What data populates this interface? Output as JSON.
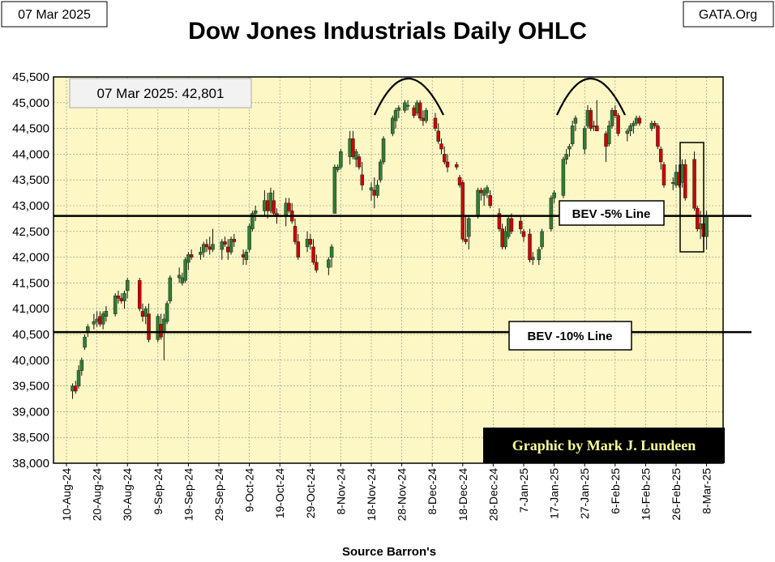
{
  "header": {
    "date_label": "07 Mar 2025",
    "title": "Dow Jones Industrials Daily OHLC",
    "site_label": "GATA.Org"
  },
  "callouts": {
    "last_close": "07 Mar 2025:   42,801",
    "bev5": "BEV -5% Line",
    "bev10": "BEV -10% Line",
    "credit": "Graphic by Mark J. Lundeen",
    "source": "Source Barron's"
  },
  "colors": {
    "plot_bg": "#fcf7c4",
    "up_candle": "#2e7d32",
    "down_candle": "#cc0000",
    "grid": "#888888",
    "credit_bg": "#000000",
    "credit_text": "#ffff99"
  },
  "chart_data": {
    "type": "ohlc",
    "title": "Dow Jones Industrials Daily OHLC",
    "xlabel": "Source Barron's",
    "ylabel": "",
    "ylim": [
      38000,
      45500
    ],
    "ytick_values": [
      38000,
      38500,
      39000,
      39500,
      40000,
      40500,
      41000,
      41500,
      42000,
      42500,
      43000,
      43500,
      44000,
      44500,
      45000,
      45500
    ],
    "ytick_labels": [
      "38,000",
      "38,500",
      "39,000",
      "39,500",
      "40,000",
      "40,500",
      "41,000",
      "41,500",
      "42,000",
      "42,500",
      "43,000",
      "43,500",
      "44,000",
      "44,500",
      "45,000",
      "45,500"
    ],
    "x_day_range": [
      0,
      214
    ],
    "xtick_days": [
      0,
      10,
      20,
      30,
      40,
      50,
      60,
      70,
      80,
      90,
      100,
      110,
      120,
      130,
      140,
      150,
      160,
      170,
      180,
      190,
      200,
      210
    ],
    "xtick_labels": [
      "10-Aug-24",
      "20-Aug-24",
      "30-Aug-24",
      "9-Sep-24",
      "19-Sep-24",
      "29-Sep-24",
      "9-Oct-24",
      "19-Oct-24",
      "29-Oct-24",
      "8-Nov-24",
      "18-Nov-24",
      "28-Nov-24",
      "8-Dec-24",
      "18-Dec-24",
      "28-Dec-24",
      "7-Jan-25",
      "17-Jan-25",
      "27-Jan-25",
      "6-Feb-25",
      "16-Feb-25",
      "26-Feb-25",
      "8-Mar-25"
    ],
    "reference_lines": [
      {
        "name": "BEV -5% Line",
        "value": 42801
      },
      {
        "name": "BEV -10% Line",
        "value": 40546
      }
    ],
    "last_date": "07 Mar 2025",
    "last_close": 42801,
    "series": [
      {
        "d": 2,
        "o": 39400,
        "h": 39550,
        "l": 39250,
        "c": 39500
      },
      {
        "d": 3,
        "o": 39500,
        "h": 39600,
        "l": 39350,
        "c": 39400
      },
      {
        "d": 4,
        "o": 39500,
        "h": 39900,
        "l": 39450,
        "c": 39800
      },
      {
        "d": 5,
        "o": 39800,
        "h": 40050,
        "l": 39700,
        "c": 40000
      },
      {
        "d": 6,
        "o": 40250,
        "h": 40500,
        "l": 40200,
        "c": 40450
      },
      {
        "d": 7,
        "o": 40550,
        "h": 40700,
        "l": 40450,
        "c": 40650
      },
      {
        "d": 9,
        "o": 40700,
        "h": 40900,
        "l": 40600,
        "c": 40750
      },
      {
        "d": 10,
        "o": 40750,
        "h": 40950,
        "l": 40650,
        "c": 40800
      },
      {
        "d": 11,
        "o": 40850,
        "h": 40950,
        "l": 40650,
        "c": 40700
      },
      {
        "d": 12,
        "o": 40700,
        "h": 40950,
        "l": 40600,
        "c": 40900
      },
      {
        "d": 13,
        "o": 40850,
        "h": 41050,
        "l": 40750,
        "c": 40950
      },
      {
        "d": 16,
        "o": 40900,
        "h": 41300,
        "l": 40850,
        "c": 41250
      },
      {
        "d": 17,
        "o": 41250,
        "h": 41350,
        "l": 41100,
        "c": 41200
      },
      {
        "d": 18,
        "o": 41200,
        "h": 41300,
        "l": 41100,
        "c": 41150
      },
      {
        "d": 19,
        "o": 41150,
        "h": 41350,
        "l": 41000,
        "c": 41300
      },
      {
        "d": 20,
        "o": 41350,
        "h": 41600,
        "l": 41200,
        "c": 41550
      },
      {
        "d": 24,
        "o": 41550,
        "h": 41600,
        "l": 40950,
        "c": 41000
      },
      {
        "d": 25,
        "o": 40950,
        "h": 41100,
        "l": 40750,
        "c": 40850
      },
      {
        "d": 26,
        "o": 40850,
        "h": 41050,
        "l": 40700,
        "c": 41000
      },
      {
        "d": 27,
        "o": 40900,
        "h": 41100,
        "l": 40350,
        "c": 40400
      },
      {
        "d": 30,
        "o": 40400,
        "h": 40900,
        "l": 40350,
        "c": 40850
      },
      {
        "d": 31,
        "o": 40700,
        "h": 40900,
        "l": 40400,
        "c": 40450
      },
      {
        "d": 32,
        "o": 40550,
        "h": 40900,
        "l": 40000,
        "c": 40800
      },
      {
        "d": 33,
        "o": 40750,
        "h": 41150,
        "l": 40700,
        "c": 41100
      },
      {
        "d": 34,
        "o": 41150,
        "h": 41650,
        "l": 41100,
        "c": 41600
      },
      {
        "d": 37,
        "o": 41600,
        "h": 41800,
        "l": 41500,
        "c": 41650
      },
      {
        "d": 38,
        "o": 41500,
        "h": 41700,
        "l": 41450,
        "c": 41600
      },
      {
        "d": 39,
        "o": 41550,
        "h": 42000,
        "l": 41500,
        "c": 41950
      },
      {
        "d": 40,
        "o": 41900,
        "h": 42100,
        "l": 41750,
        "c": 42050
      },
      {
        "d": 41,
        "o": 42050,
        "h": 42150,
        "l": 41950,
        "c": 42000
      },
      {
        "d": 44,
        "o": 42050,
        "h": 42200,
        "l": 41950,
        "c": 42100
      },
      {
        "d": 45,
        "o": 42100,
        "h": 42300,
        "l": 42000,
        "c": 42250
      },
      {
        "d": 46,
        "o": 42250,
        "h": 42350,
        "l": 42100,
        "c": 42200
      },
      {
        "d": 47,
        "o": 42200,
        "h": 42400,
        "l": 42050,
        "c": 42150
      },
      {
        "d": 48,
        "o": 42150,
        "h": 42550,
        "l": 42100,
        "c": 42250
      },
      {
        "d": 51,
        "o": 42150,
        "h": 42350,
        "l": 41950,
        "c": 42300
      },
      {
        "d": 52,
        "o": 42300,
        "h": 42400,
        "l": 42200,
        "c": 42250
      },
      {
        "d": 53,
        "o": 42200,
        "h": 42350,
        "l": 41950,
        "c": 42100
      },
      {
        "d": 54,
        "o": 42100,
        "h": 42400,
        "l": 42050,
        "c": 42350
      },
      {
        "d": 55,
        "o": 42350,
        "h": 42450,
        "l": 42200,
        "c": 42300
      },
      {
        "d": 58,
        "o": 42050,
        "h": 42150,
        "l": 41850,
        "c": 42000
      },
      {
        "d": 59,
        "o": 41950,
        "h": 42150,
        "l": 41850,
        "c": 42100
      },
      {
        "d": 60,
        "o": 42150,
        "h": 42650,
        "l": 42100,
        "c": 42600
      },
      {
        "d": 61,
        "o": 42550,
        "h": 42900,
        "l": 42500,
        "c": 42850
      },
      {
        "d": 62,
        "o": 42850,
        "h": 43000,
        "l": 42700,
        "c": 42900
      },
      {
        "d": 65,
        "o": 42900,
        "h": 43300,
        "l": 42800,
        "c": 43100
      },
      {
        "d": 66,
        "o": 43100,
        "h": 43250,
        "l": 42750,
        "c": 42900
      },
      {
        "d": 67,
        "o": 42900,
        "h": 43350,
        "l": 42850,
        "c": 43250
      },
      {
        "d": 68,
        "o": 43100,
        "h": 43300,
        "l": 42800,
        "c": 42850
      },
      {
        "d": 69,
        "o": 42850,
        "h": 42950,
        "l": 42650,
        "c": 42800
      },
      {
        "d": 72,
        "o": 42800,
        "h": 43150,
        "l": 42600,
        "c": 43050
      },
      {
        "d": 73,
        "o": 43050,
        "h": 43150,
        "l": 42850,
        "c": 42900
      },
      {
        "d": 74,
        "o": 42900,
        "h": 43050,
        "l": 42650,
        "c": 42700
      },
      {
        "d": 75,
        "o": 42600,
        "h": 42750,
        "l": 42250,
        "c": 42300
      },
      {
        "d": 76,
        "o": 42300,
        "h": 42450,
        "l": 41950,
        "c": 42000
      },
      {
        "d": 79,
        "o": 42200,
        "h": 42500,
        "l": 42100,
        "c": 42350
      },
      {
        "d": 80,
        "o": 42350,
        "h": 42450,
        "l": 42150,
        "c": 42250
      },
      {
        "d": 81,
        "o": 42200,
        "h": 42350,
        "l": 41850,
        "c": 41900
      },
      {
        "d": 82,
        "o": 41900,
        "h": 42050,
        "l": 41700,
        "c": 41750
      },
      {
        "d": 86,
        "o": 41800,
        "h": 42000,
        "l": 41650,
        "c": 41950
      },
      {
        "d": 87,
        "o": 42000,
        "h": 42250,
        "l": 41800,
        "c": 42200
      },
      {
        "d": 88,
        "o": 42850,
        "h": 43800,
        "l": 42850,
        "c": 43750
      },
      {
        "d": 89,
        "o": 43700,
        "h": 43800,
        "l": 43650,
        "c": 43750
      },
      {
        "d": 90,
        "o": 43750,
        "h": 44100,
        "l": 43700,
        "c": 44050
      },
      {
        "d": 93,
        "o": 43950,
        "h": 44450,
        "l": 43800,
        "c": 44300
      },
      {
        "d": 94,
        "o": 44300,
        "h": 44450,
        "l": 43900,
        "c": 43950
      },
      {
        "d": 95,
        "o": 43900,
        "h": 44100,
        "l": 43750,
        "c": 44050
      },
      {
        "d": 96,
        "o": 43950,
        "h": 44000,
        "l": 43700,
        "c": 43750
      },
      {
        "d": 97,
        "o": 43600,
        "h": 43850,
        "l": 43300,
        "c": 43400
      },
      {
        "d": 100,
        "o": 43300,
        "h": 43450,
        "l": 43100,
        "c": 43350
      },
      {
        "d": 101,
        "o": 43300,
        "h": 43550,
        "l": 42950,
        "c": 43200
      },
      {
        "d": 102,
        "o": 43200,
        "h": 43500,
        "l": 43150,
        "c": 43400
      },
      {
        "d": 103,
        "o": 43500,
        "h": 43900,
        "l": 43450,
        "c": 43850
      },
      {
        "d": 104,
        "o": 43850,
        "h": 44350,
        "l": 43800,
        "c": 44300
      },
      {
        "d": 107,
        "o": 44400,
        "h": 44750,
        "l": 44350,
        "c": 44700
      },
      {
        "d": 108,
        "o": 44650,
        "h": 44900,
        "l": 44500,
        "c": 44850
      },
      {
        "d": 109,
        "o": 44850,
        "h": 44950,
        "l": 44700,
        "c": 44900
      },
      {
        "d": 111,
        "o": 44850,
        "h": 45050,
        "l": 44800,
        "c": 45000
      },
      {
        "d": 112,
        "o": 44950,
        "h": 45050,
        "l": 44850,
        "c": 44950
      },
      {
        "d": 114,
        "o": 44900,
        "h": 44950,
        "l": 44700,
        "c": 44750
      },
      {
        "d": 115,
        "o": 44800,
        "h": 45050,
        "l": 44750,
        "c": 45000
      },
      {
        "d": 116,
        "o": 45000,
        "h": 45050,
        "l": 44650,
        "c": 44700
      },
      {
        "d": 117,
        "o": 44700,
        "h": 44850,
        "l": 44550,
        "c": 44650
      },
      {
        "d": 118,
        "o": 44650,
        "h": 44900,
        "l": 44600,
        "c": 44850
      },
      {
        "d": 121,
        "o": 44700,
        "h": 44800,
        "l": 44450,
        "c": 44500
      },
      {
        "d": 122,
        "o": 44450,
        "h": 44600,
        "l": 44200,
        "c": 44250
      },
      {
        "d": 123,
        "o": 44200,
        "h": 44300,
        "l": 44000,
        "c": 44100
      },
      {
        "d": 124,
        "o": 44000,
        "h": 44150,
        "l": 43800,
        "c": 43850
      },
      {
        "d": 125,
        "o": 43850,
        "h": 44000,
        "l": 43650,
        "c": 43750
      },
      {
        "d": 128,
        "o": 43800,
        "h": 43850,
        "l": 43700,
        "c": 43750
      },
      {
        "d": 129,
        "o": 43550,
        "h": 43600,
        "l": 43350,
        "c": 43400
      },
      {
        "d": 130,
        "o": 43450,
        "h": 43500,
        "l": 42300,
        "c": 42350
      },
      {
        "d": 131,
        "o": 42350,
        "h": 42800,
        "l": 42250,
        "c": 42300
      },
      {
        "d": 132,
        "o": 42400,
        "h": 42800,
        "l": 42150,
        "c": 42750
      },
      {
        "d": 135,
        "o": 42800,
        "h": 43350,
        "l": 42750,
        "c": 43300
      },
      {
        "d": 136,
        "o": 43300,
        "h": 43350,
        "l": 43100,
        "c": 43250
      },
      {
        "d": 137,
        "o": 43200,
        "h": 43350,
        "l": 43000,
        "c": 43300
      },
      {
        "d": 138,
        "o": 43250,
        "h": 43400,
        "l": 43150,
        "c": 43350
      },
      {
        "d": 139,
        "o": 43200,
        "h": 43300,
        "l": 42950,
        "c": 43000
      },
      {
        "d": 142,
        "o": 42850,
        "h": 42950,
        "l": 42500,
        "c": 42550
      },
      {
        "d": 143,
        "o": 42550,
        "h": 42650,
        "l": 42150,
        "c": 42200
      },
      {
        "d": 144,
        "o": 42200,
        "h": 42600,
        "l": 42150,
        "c": 42500
      },
      {
        "d": 145,
        "o": 42400,
        "h": 42800,
        "l": 42350,
        "c": 42750
      },
      {
        "d": 146,
        "o": 42750,
        "h": 42850,
        "l": 42450,
        "c": 42500
      },
      {
        "d": 149,
        "o": 42700,
        "h": 42800,
        "l": 42450,
        "c": 42550
      },
      {
        "d": 150,
        "o": 42500,
        "h": 42550,
        "l": 42300,
        "c": 42400
      },
      {
        "d": 152,
        "o": 42450,
        "h": 42550,
        "l": 41900,
        "c": 41950
      },
      {
        "d": 153,
        "o": 41950,
        "h": 42100,
        "l": 41850,
        "c": 42000
      },
      {
        "d": 155,
        "o": 41950,
        "h": 42200,
        "l": 41850,
        "c": 42150
      },
      {
        "d": 156,
        "o": 42200,
        "h": 42550,
        "l": 42150,
        "c": 42500
      },
      {
        "d": 159,
        "o": 42550,
        "h": 43200,
        "l": 42500,
        "c": 43150
      },
      {
        "d": 160,
        "o": 43150,
        "h": 43300,
        "l": 43050,
        "c": 43250
      },
      {
        "d": 163,
        "o": 43200,
        "h": 43950,
        "l": 43150,
        "c": 43900
      },
      {
        "d": 164,
        "o": 43900,
        "h": 44100,
        "l": 43800,
        "c": 44000
      },
      {
        "d": 165,
        "o": 44100,
        "h": 44200,
        "l": 43950,
        "c": 44150
      },
      {
        "d": 166,
        "o": 44200,
        "h": 44650,
        "l": 44150,
        "c": 44550
      },
      {
        "d": 167,
        "o": 44600,
        "h": 44750,
        "l": 44450,
        "c": 44700
      },
      {
        "d": 170,
        "o": 44100,
        "h": 44550,
        "l": 44000,
        "c": 44500
      },
      {
        "d": 171,
        "o": 44550,
        "h": 44950,
        "l": 44500,
        "c": 44850
      },
      {
        "d": 172,
        "o": 44850,
        "h": 44900,
        "l": 44450,
        "c": 44500
      },
      {
        "d": 173,
        "o": 44550,
        "h": 44650,
        "l": 44450,
        "c": 44550
      },
      {
        "d": 174,
        "o": 44550,
        "h": 45050,
        "l": 44500,
        "c": 44450
      },
      {
        "d": 177,
        "o": 44400,
        "h": 44450,
        "l": 43850,
        "c": 44150
      },
      {
        "d": 178,
        "o": 44200,
        "h": 44650,
        "l": 44150,
        "c": 44550
      },
      {
        "d": 179,
        "o": 44550,
        "h": 44900,
        "l": 44500,
        "c": 44850
      },
      {
        "d": 180,
        "o": 44850,
        "h": 44950,
        "l": 44700,
        "c": 44750
      },
      {
        "d": 181,
        "o": 44750,
        "h": 44800,
        "l": 44350,
        "c": 44400
      },
      {
        "d": 184,
        "o": 44400,
        "h": 44500,
        "l": 44250,
        "c": 44450
      },
      {
        "d": 185,
        "o": 44450,
        "h": 44600,
        "l": 44350,
        "c": 44550
      },
      {
        "d": 186,
        "o": 44550,
        "h": 44650,
        "l": 44400,
        "c": 44600
      },
      {
        "d": 187,
        "o": 44600,
        "h": 44750,
        "l": 44550,
        "c": 44700
      },
      {
        "d": 188,
        "o": 44700,
        "h": 44750,
        "l": 44550,
        "c": 44600
      },
      {
        "d": 192,
        "o": 44500,
        "h": 44650,
        "l": 44450,
        "c": 44600
      },
      {
        "d": 193,
        "o": 44600,
        "h": 44650,
        "l": 44500,
        "c": 44550
      },
      {
        "d": 194,
        "o": 44550,
        "h": 44600,
        "l": 44100,
        "c": 44150
      },
      {
        "d": 195,
        "o": 44100,
        "h": 44150,
        "l": 43700,
        "c": 43850
      },
      {
        "d": 196,
        "o": 43800,
        "h": 43850,
        "l": 43350,
        "c": 43400
      },
      {
        "d": 199,
        "o": 43450,
        "h": 43550,
        "l": 43300,
        "c": 43450
      },
      {
        "d": 200,
        "o": 43400,
        "h": 43800,
        "l": 43350,
        "c": 43650
      },
      {
        "d": 201,
        "o": 43650,
        "h": 43800,
        "l": 43350,
        "c": 43400
      },
      {
        "d": 202,
        "o": 43450,
        "h": 43900,
        "l": 43350,
        "c": 43800
      },
      {
        "d": 203,
        "o": 43800,
        "h": 43900,
        "l": 43100,
        "c": 43150
      },
      {
        "d": 206,
        "o": 43900,
        "h": 44050,
        "l": 42900,
        "c": 42950
      },
      {
        "d": 207,
        "o": 42950,
        "h": 43000,
        "l": 42500,
        "c": 42550
      },
      {
        "d": 208,
        "o": 42550,
        "h": 42900,
        "l": 42350,
        "c": 42650
      },
      {
        "d": 209,
        "o": 42650,
        "h": 42750,
        "l": 42250,
        "c": 42400
      },
      {
        "d": 210,
        "o": 42400,
        "h": 42900,
        "l": 42150,
        "c": 42801
      }
    ]
  }
}
